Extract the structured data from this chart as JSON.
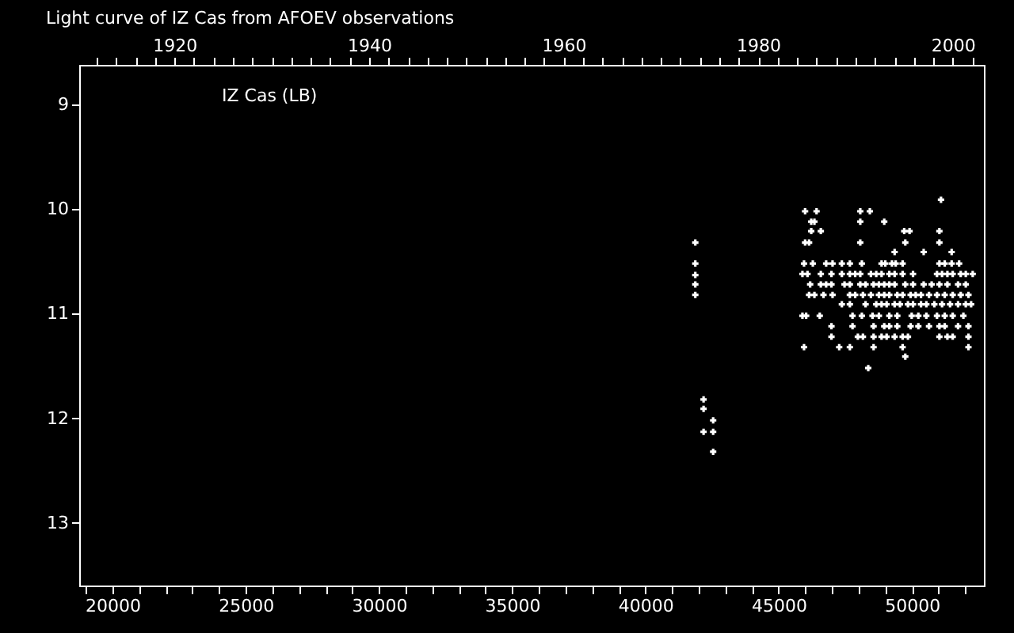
{
  "chart_data": {
    "type": "scatter",
    "title": "Light curve of IZ Cas from AFOEV observations",
    "annotations": [
      "IZ Cas (LB)"
    ],
    "x": [
      41870,
      41870,
      41870,
      41870,
      41870,
      42180,
      42180,
      42540,
      42180,
      42540,
      42540,
      51090,
      45990,
      46420,
      48060,
      48420,
      46220,
      46340,
      48060,
      48960,
      46220,
      46580,
      49710,
      49910,
      51030,
      45990,
      46140,
      48060,
      49750,
      51030,
      49350,
      50440,
      51490,
      45950,
      46280,
      46780,
      47020,
      47370,
      47670,
      48120,
      48860,
      49000,
      49250,
      49390,
      49650,
      51030,
      51230,
      51490,
      51770,
      45890,
      46080,
      46580,
      46980,
      47370,
      47670,
      47870,
      48060,
      48460,
      48660,
      48860,
      49150,
      49350,
      49650,
      50040,
      50940,
      51130,
      51330,
      51530,
      51830,
      52020,
      52280,
      46180,
      46580,
      46780,
      46980,
      47470,
      47670,
      48060,
      48260,
      48560,
      48760,
      48960,
      49150,
      49350,
      49750,
      50040,
      50440,
      50740,
      51030,
      51330,
      51730,
      52020,
      46140,
      46340,
      46680,
      47020,
      47670,
      47870,
      48160,
      48460,
      48760,
      48960,
      49150,
      49450,
      49650,
      49950,
      50140,
      50340,
      50640,
      50940,
      51230,
      51530,
      51830,
      52120,
      47370,
      47670,
      48260,
      48660,
      48860,
      49050,
      49350,
      49550,
      49850,
      50040,
      50340,
      50540,
      50840,
      51130,
      51430,
      51730,
      52020,
      52220,
      45890,
      46030,
      46540,
      47770,
      48120,
      48520,
      48760,
      49150,
      49450,
      49990,
      50240,
      50540,
      50940,
      51230,
      51530,
      51930,
      46980,
      47770,
      48560,
      48960,
      49150,
      49450,
      49950,
      50240,
      50640,
      51030,
      51230,
      51730,
      52120,
      46980,
      47970,
      48160,
      48560,
      48860,
      49050,
      49350,
      49650,
      49850,
      51030,
      51330,
      51530,
      52120,
      45950,
      47270,
      47670,
      48560,
      49650,
      52120,
      49750,
      48360
    ],
    "series": [
      {
        "color": "#ffffff",
        "values": [
          10.32,
          10.52,
          10.63,
          10.72,
          10.82,
          11.82,
          11.91,
          12.02,
          12.13,
          12.13,
          12.32,
          9.91,
          10.02,
          10.02,
          10.02,
          10.02,
          10.12,
          10.12,
          10.12,
          10.12,
          10.21,
          10.21,
          10.21,
          10.21,
          10.21,
          10.32,
          10.32,
          10.32,
          10.32,
          10.32,
          10.41,
          10.41,
          10.41,
          10.52,
          10.52,
          10.52,
          10.52,
          10.52,
          10.52,
          10.52,
          10.52,
          10.52,
          10.52,
          10.52,
          10.52,
          10.52,
          10.52,
          10.52,
          10.52,
          10.62,
          10.62,
          10.62,
          10.62,
          10.62,
          10.62,
          10.62,
          10.62,
          10.62,
          10.62,
          10.62,
          10.62,
          10.62,
          10.62,
          10.62,
          10.62,
          10.62,
          10.62,
          10.62,
          10.62,
          10.62,
          10.62,
          10.72,
          10.72,
          10.72,
          10.72,
          10.72,
          10.72,
          10.72,
          10.72,
          10.72,
          10.72,
          10.72,
          10.72,
          10.72,
          10.72,
          10.72,
          10.72,
          10.72,
          10.72,
          10.72,
          10.72,
          10.72,
          10.82,
          10.82,
          10.82,
          10.82,
          10.82,
          10.82,
          10.82,
          10.82,
          10.82,
          10.82,
          10.82,
          10.82,
          10.82,
          10.82,
          10.82,
          10.82,
          10.82,
          10.82,
          10.82,
          10.82,
          10.82,
          10.82,
          10.91,
          10.91,
          10.91,
          10.91,
          10.91,
          10.91,
          10.91,
          10.91,
          10.91,
          10.91,
          10.91,
          10.91,
          10.91,
          10.91,
          10.91,
          10.91,
          10.91,
          10.91,
          11.02,
          11.02,
          11.02,
          11.02,
          11.02,
          11.02,
          11.02,
          11.02,
          11.02,
          11.02,
          11.02,
          11.02,
          11.02,
          11.02,
          11.02,
          11.02,
          11.12,
          11.12,
          11.12,
          11.12,
          11.12,
          11.12,
          11.12,
          11.12,
          11.12,
          11.12,
          11.12,
          11.12,
          11.12,
          11.22,
          11.22,
          11.22,
          11.22,
          11.22,
          11.22,
          11.22,
          11.22,
          11.22,
          11.22,
          11.22,
          11.22,
          11.22,
          11.32,
          11.32,
          11.32,
          11.32,
          11.32,
          11.32,
          11.41,
          11.52
        ]
      }
    ],
    "marker": "cross",
    "xlim": [
      18750,
      52700
    ],
    "xticks": [
      {
        "value": 19000,
        "label": null
      },
      20000,
      {
        "value": 21000,
        "label": null
      },
      {
        "value": 22000,
        "label": null
      },
      {
        "value": 23000,
        "label": null
      },
      {
        "value": 24000,
        "label": null
      },
      {
        "value": 25000,
        "label": "25000"
      },
      {
        "value": 26000,
        "label": null
      },
      {
        "value": 27000,
        "label": null
      },
      {
        "value": 28000,
        "label": null
      },
      {
        "value": 29000,
        "label": null
      },
      30000,
      {
        "value": 31000,
        "label": null
      },
      {
        "value": 32000,
        "label": null
      },
      {
        "value": 33000,
        "label": null
      },
      {
        "value": 34000,
        "label": null
      },
      35000,
      {
        "value": 36000,
        "label": null
      },
      {
        "value": 37000,
        "label": null
      },
      {
        "value": 38000,
        "label": null
      },
      {
        "value": 39000,
        "label": null
      },
      40000,
      {
        "value": 41000,
        "label": null
      },
      {
        "value": 42000,
        "label": null
      },
      {
        "value": 43000,
        "label": null
      },
      {
        "value": 44000,
        "label": null
      },
      45000,
      {
        "value": 46000,
        "label": null
      },
      {
        "value": 47000,
        "label": null
      },
      {
        "value": 48000,
        "label": null
      },
      {
        "value": 49000,
        "label": null
      },
      50000,
      {
        "value": 51000,
        "label": null
      },
      {
        "value": 52000,
        "label": null
      }
    ],
    "x2lim": [
      1910.2,
      2003.2
    ],
    "x2ticks": [
      {
        "value": 1912,
        "label": null
      },
      {
        "value": 1914,
        "label": null
      },
      {
        "value": 1916,
        "label": null
      },
      {
        "value": 1918,
        "label": null
      },
      1920,
      {
        "value": 1922,
        "label": null
      },
      {
        "value": 1924,
        "label": null
      },
      {
        "value": 1926,
        "label": null
      },
      {
        "value": 1928,
        "label": null
      },
      {
        "value": 1930,
        "label": null
      },
      {
        "value": 1932,
        "label": null
      },
      {
        "value": 1934,
        "label": null
      },
      {
        "value": 1936,
        "label": null
      },
      {
        "value": 1938,
        "label": null
      },
      1940,
      {
        "value": 1942,
        "label": null
      },
      {
        "value": 1944,
        "label": null
      },
      {
        "value": 1946,
        "label": null
      },
      {
        "value": 1948,
        "label": null
      },
      {
        "value": 1950,
        "label": null
      },
      {
        "value": 1952,
        "label": null
      },
      {
        "value": 1954,
        "label": null
      },
      {
        "value": 1956,
        "label": null
      },
      {
        "value": 1958,
        "label": null
      },
      1960,
      {
        "value": 1962,
        "label": null
      },
      {
        "value": 1964,
        "label": null
      },
      {
        "value": 1966,
        "label": null
      },
      {
        "value": 1968,
        "label": null
      },
      {
        "value": 1970,
        "label": null
      },
      {
        "value": 1972,
        "label": null
      },
      {
        "value": 1974,
        "label": null
      },
      {
        "value": 1976,
        "label": null
      },
      {
        "value": 1978,
        "label": null
      },
      1980,
      {
        "value": 1982,
        "label": null
      },
      {
        "value": 1984,
        "label": null
      },
      {
        "value": 1986,
        "label": null
      },
      {
        "value": 1988,
        "label": null
      },
      {
        "value": 1990,
        "label": null
      },
      {
        "value": 1992,
        "label": null
      },
      {
        "value": 1994,
        "label": null
      },
      {
        "value": 1996,
        "label": null
      },
      {
        "value": 1998,
        "label": null
      },
      2000,
      {
        "value": 2002,
        "label": null
      }
    ],
    "ylim": [
      13.6,
      8.62
    ],
    "yticks": [
      9,
      10,
      11,
      12,
      13
    ],
    "grid": false
  }
}
